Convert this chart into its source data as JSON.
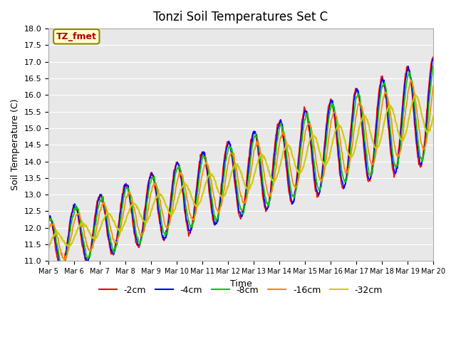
{
  "title": "Tonzi Soil Temperatures Set C",
  "xlabel": "Time",
  "ylabel": "Soil Temperature (C)",
  "ylim": [
    11.0,
    18.0
  ],
  "yticks": [
    11.0,
    11.5,
    12.0,
    12.5,
    13.0,
    13.5,
    14.0,
    14.5,
    15.0,
    15.5,
    16.0,
    16.5,
    17.0,
    17.5,
    18.0
  ],
  "xtick_labels": [
    "Mar 5",
    "Mar 6",
    "Mar 7",
    "Mar 8",
    "Mar 9",
    "Mar 10",
    "Mar 11",
    "Mar 12",
    "Mar 13",
    "Mar 14",
    "Mar 15",
    "Mar 16",
    "Mar 17",
    "Mar 18",
    "Mar 19",
    "Mar 20"
  ],
  "series_labels": [
    "-2cm",
    "-4cm",
    "-8cm",
    "-16cm",
    "-32cm"
  ],
  "series_colors": [
    "#ff0000",
    "#0000ff",
    "#00cc00",
    "#ff8800",
    "#cccc00"
  ],
  "annotation_text": "TZ_fmet",
  "annotation_color": "#aa0000",
  "annotation_bg": "#ffffcc",
  "background_color": "#e8e8e8",
  "grid_color": "#ffffff",
  "days": 15
}
